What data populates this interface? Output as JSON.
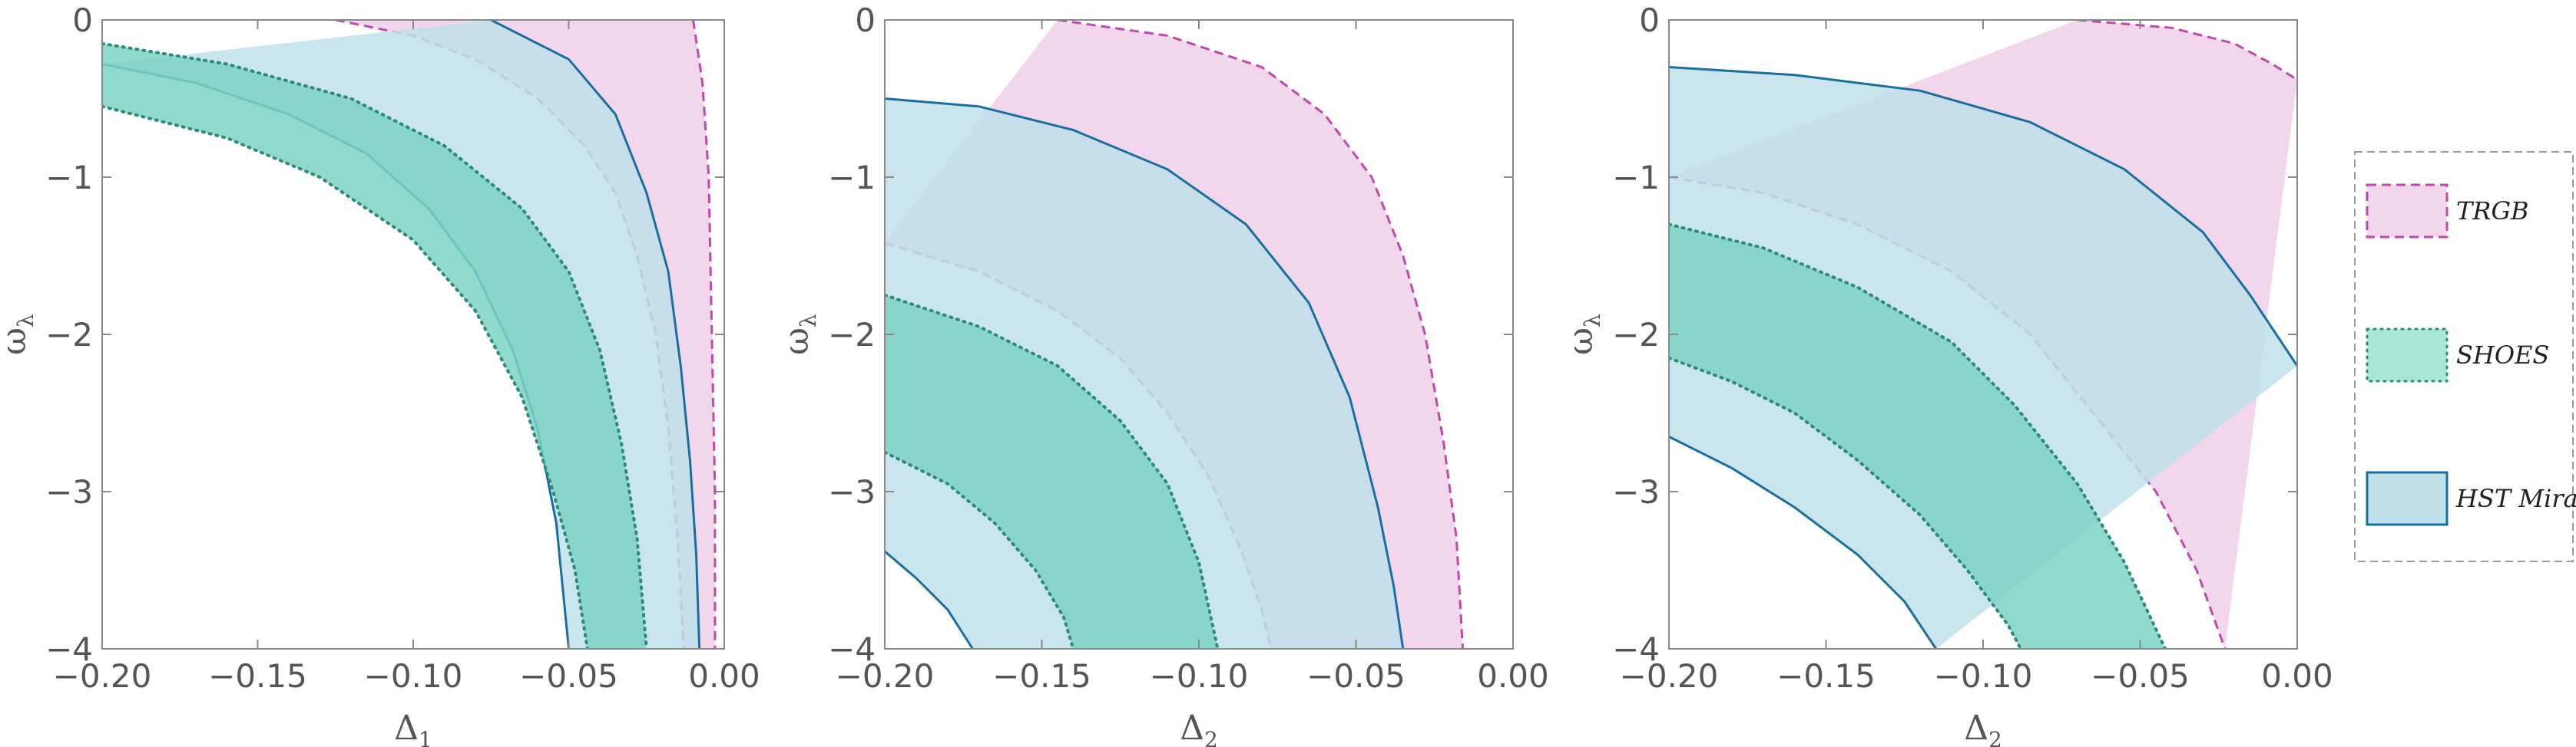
{
  "colors": {
    "trgb_fill": "#f2d6ec",
    "trgb_line": "#c04aa8",
    "shoes_fill": "#7dd3c4",
    "shoes_line": "#2e8a7a",
    "mira_fill": "#c0e0ea",
    "mira_line": "#1a6fa0",
    "overlap_fill": "#c3bfde",
    "axis": "#8a8a8a",
    "text": "#555555"
  },
  "legend": {
    "placement": "right",
    "items": [
      {
        "label": "TRGB",
        "style": "dashed",
        "fill": "#f2d6ec",
        "stroke": "#c04aa8"
      },
      {
        "label": "SHOES",
        "style": "dotted",
        "fill": "#a8e6d6",
        "stroke": "#2e8a7a"
      },
      {
        "label": "HST Mira",
        "style": "solid",
        "fill": "#c0e0ea",
        "stroke": "#1a6fa0"
      }
    ]
  },
  "chart_data": [
    {
      "type": "area",
      "xlabel": "Δ",
      "xlabel_sub": "1",
      "ylabel": "ω",
      "ylabel_sub": "λ",
      "xlim": [
        -0.2,
        0.0
      ],
      "ylim": [
        -4,
        0
      ],
      "xticks": [
        -0.2,
        -0.15,
        -0.1,
        -0.05,
        0.0
      ],
      "xtick_labels": [
        "−0.20",
        "−0.15",
        "−0.10",
        "−0.05",
        "0.00"
      ],
      "yticks": [
        0,
        -1,
        -2,
        -3,
        -4
      ],
      "ytick_labels": [
        "0",
        "−1",
        "−2",
        "−3",
        "−4"
      ],
      "grid": false,
      "series": [
        {
          "name": "TRGB",
          "style": "dashed",
          "lower": [
            [
              -0.125,
              0
            ],
            [
              -0.1,
              -0.1
            ],
            [
              -0.08,
              -0.25
            ],
            [
              -0.06,
              -0.5
            ],
            [
              -0.045,
              -0.8
            ],
            [
              -0.035,
              -1.1
            ],
            [
              -0.028,
              -1.5
            ],
            [
              -0.022,
              -2
            ],
            [
              -0.018,
              -2.6
            ],
            [
              -0.015,
              -3.3
            ],
            [
              -0.013,
              -4
            ]
          ],
          "upper": [
            [
              -0.01,
              0
            ],
            [
              -0.007,
              -0.4
            ],
            [
              -0.005,
              -1
            ],
            [
              -0.004,
              -2
            ],
            [
              -0.003,
              -3
            ],
            [
              -0.003,
              -4
            ]
          ]
        },
        {
          "name": "SHOES",
          "style": "dotted",
          "lower": [
            [
              -0.2,
              -0.15
            ],
            [
              -0.16,
              -0.28
            ],
            [
              -0.12,
              -0.5
            ],
            [
              -0.09,
              -0.8
            ],
            [
              -0.065,
              -1.2
            ],
            [
              -0.05,
              -1.6
            ],
            [
              -0.04,
              -2.1
            ],
            [
              -0.033,
              -2.7
            ],
            [
              -0.028,
              -3.3
            ],
            [
              -0.025,
              -4
            ]
          ],
          "upper": [
            [
              -0.2,
              -0.55
            ],
            [
              -0.16,
              -0.75
            ],
            [
              -0.13,
              -1.0
            ],
            [
              -0.1,
              -1.4
            ],
            [
              -0.08,
              -1.85
            ],
            [
              -0.065,
              -2.4
            ],
            [
              -0.055,
              -3.0
            ],
            [
              -0.048,
              -3.5
            ],
            [
              -0.044,
              -4
            ]
          ]
        },
        {
          "name": "HST Mira",
          "style": "solid",
          "lower": [
            [
              -0.075,
              0
            ],
            [
              -0.05,
              -0.25
            ],
            [
              -0.035,
              -0.6
            ],
            [
              -0.025,
              -1.1
            ],
            [
              -0.018,
              -1.6
            ],
            [
              -0.014,
              -2.2
            ],
            [
              -0.011,
              -2.8
            ],
            [
              -0.009,
              -3.4
            ],
            [
              -0.008,
              -4
            ]
          ],
          "upper": [
            [
              -0.2,
              -0.28
            ],
            [
              -0.17,
              -0.4
            ],
            [
              -0.14,
              -0.6
            ],
            [
              -0.115,
              -0.85
            ],
            [
              -0.095,
              -1.2
            ],
            [
              -0.08,
              -1.6
            ],
            [
              -0.068,
              -2.1
            ],
            [
              -0.06,
              -2.6
            ],
            [
              -0.054,
              -3.2
            ],
            [
              -0.05,
              -4
            ]
          ]
        }
      ]
    },
    {
      "type": "area",
      "xlabel": "Δ",
      "xlabel_sub": "2",
      "ylabel": "ω",
      "ylabel_sub": "λ",
      "xlim": [
        -0.2,
        0.0
      ],
      "ylim": [
        -4,
        0
      ],
      "xticks": [
        -0.2,
        -0.15,
        -0.1,
        -0.05,
        0.0
      ],
      "xtick_labels": [
        "−0.20",
        "−0.15",
        "−0.10",
        "−0.05",
        "0.00"
      ],
      "yticks": [
        0,
        -1,
        -2,
        -3,
        -4
      ],
      "ytick_labels": [
        "0",
        "−1",
        "−2",
        "−3",
        "−4"
      ],
      "grid": false,
      "series": [
        {
          "name": "TRGB",
          "style": "dashed",
          "upper": [
            [
              -0.145,
              0
            ],
            [
              -0.11,
              -0.1
            ],
            [
              -0.08,
              -0.3
            ],
            [
              -0.06,
              -0.6
            ],
            [
              -0.045,
              -1.0
            ],
            [
              -0.035,
              -1.5
            ],
            [
              -0.028,
              -2.0
            ],
            [
              -0.022,
              -2.7
            ],
            [
              -0.018,
              -3.3
            ],
            [
              -0.016,
              -4
            ]
          ],
          "lower": [
            [
              -0.2,
              -1.42
            ],
            [
              -0.17,
              -1.6
            ],
            [
              -0.145,
              -1.85
            ],
            [
              -0.125,
              -2.15
            ],
            [
              -0.11,
              -2.5
            ],
            [
              -0.097,
              -2.9
            ],
            [
              -0.087,
              -3.35
            ],
            [
              -0.08,
              -3.75
            ],
            [
              -0.077,
              -4
            ]
          ]
        },
        {
          "name": "SHOES",
          "style": "dotted",
          "upper": [
            [
              -0.2,
              -1.75
            ],
            [
              -0.17,
              -1.95
            ],
            [
              -0.145,
              -2.2
            ],
            [
              -0.125,
              -2.55
            ],
            [
              -0.11,
              -2.95
            ],
            [
              -0.1,
              -3.45
            ],
            [
              -0.094,
              -4
            ]
          ],
          "lower": [
            [
              -0.2,
              -2.75
            ],
            [
              -0.18,
              -2.95
            ],
            [
              -0.165,
              -3.2
            ],
            [
              -0.152,
              -3.5
            ],
            [
              -0.143,
              -3.8
            ],
            [
              -0.14,
              -4
            ]
          ]
        },
        {
          "name": "HST Mira",
          "style": "solid",
          "upper": [
            [
              -0.2,
              -0.5
            ],
            [
              -0.17,
              -0.55
            ],
            [
              -0.14,
              -0.7
            ],
            [
              -0.11,
              -0.95
            ],
            [
              -0.085,
              -1.3
            ],
            [
              -0.065,
              -1.8
            ],
            [
              -0.052,
              -2.4
            ],
            [
              -0.043,
              -3.1
            ],
            [
              -0.038,
              -3.6
            ],
            [
              -0.035,
              -4
            ]
          ],
          "lower": [
            [
              -0.2,
              -3.38
            ],
            [
              -0.19,
              -3.55
            ],
            [
              -0.18,
              -3.75
            ],
            [
              -0.172,
              -4
            ]
          ]
        }
      ]
    },
    {
      "type": "area",
      "xlabel": "Δ",
      "xlabel_sub": "2",
      "ylabel": "ω",
      "ylabel_sub": "λ",
      "xlim": [
        -0.2,
        0.0
      ],
      "ylim": [
        -4,
        0
      ],
      "xticks": [
        -0.2,
        -0.15,
        -0.1,
        -0.05,
        0.0
      ],
      "xtick_labels": [
        "−0.20",
        "−0.15",
        "−0.10",
        "−0.05",
        "0.00"
      ],
      "yticks": [
        0,
        -1,
        -2,
        -3,
        -4
      ],
      "ytick_labels": [
        "0",
        "−1",
        "−2",
        "−3",
        "−4"
      ],
      "grid": false,
      "series": [
        {
          "name": "TRGB",
          "style": "dashed",
          "upper": [
            [
              -0.07,
              0
            ],
            [
              -0.04,
              -0.05
            ],
            [
              -0.02,
              -0.15
            ],
            [
              -0.008,
              -0.28
            ],
            [
              0.0,
              -0.38
            ]
          ],
          "lower": [
            [
              -0.2,
              -1.0
            ],
            [
              -0.17,
              -1.1
            ],
            [
              -0.14,
              -1.3
            ],
            [
              -0.11,
              -1.6
            ],
            [
              -0.085,
              -2.0
            ],
            [
              -0.065,
              -2.5
            ],
            [
              -0.045,
              -3.0
            ],
            [
              -0.032,
              -3.5
            ],
            [
              -0.023,
              -4
            ]
          ]
        },
        {
          "name": "SHOES",
          "style": "dotted",
          "upper": [
            [
              -0.2,
              -1.3
            ],
            [
              -0.17,
              -1.45
            ],
            [
              -0.14,
              -1.7
            ],
            [
              -0.11,
              -2.05
            ],
            [
              -0.09,
              -2.45
            ],
            [
              -0.07,
              -2.95
            ],
            [
              -0.055,
              -3.45
            ],
            [
              -0.042,
              -4
            ]
          ],
          "lower": [
            [
              -0.2,
              -2.15
            ],
            [
              -0.18,
              -2.3
            ],
            [
              -0.16,
              -2.5
            ],
            [
              -0.14,
              -2.8
            ],
            [
              -0.12,
              -3.15
            ],
            [
              -0.105,
              -3.5
            ],
            [
              -0.092,
              -3.85
            ],
            [
              -0.088,
              -4
            ]
          ]
        },
        {
          "name": "HST Mira",
          "style": "solid",
          "upper": [
            [
              -0.2,
              -0.3
            ],
            [
              -0.16,
              -0.35
            ],
            [
              -0.12,
              -0.45
            ],
            [
              -0.085,
              -0.65
            ],
            [
              -0.055,
              -0.95
            ],
            [
              -0.03,
              -1.35
            ],
            [
              -0.015,
              -1.75
            ],
            [
              0.0,
              -2.2
            ]
          ],
          "lower": [
            [
              -0.2,
              -2.65
            ],
            [
              -0.18,
              -2.85
            ],
            [
              -0.16,
              -3.1
            ],
            [
              -0.14,
              -3.4
            ],
            [
              -0.125,
              -3.7
            ],
            [
              -0.115,
              -4
            ]
          ]
        }
      ]
    }
  ]
}
